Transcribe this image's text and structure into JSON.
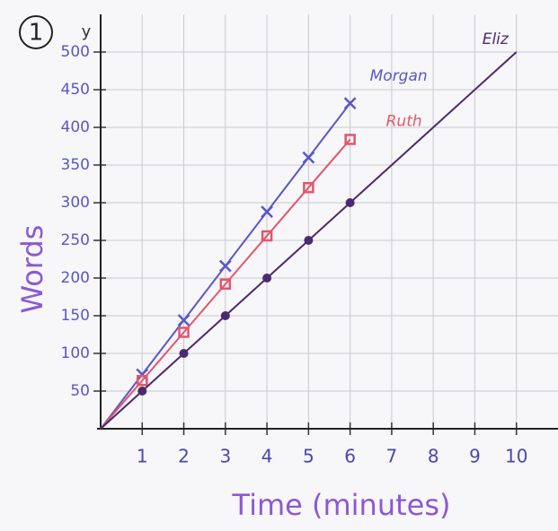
{
  "chart_data": {
    "type": "line",
    "badge": "1",
    "y_axis_letter": "y",
    "xlabel": "Time (minutes)",
    "ylabel": "Words",
    "xlim": [
      0,
      11
    ],
    "ylim": [
      0,
      550
    ],
    "xticks": [
      1,
      2,
      3,
      4,
      5,
      6,
      7,
      8,
      9,
      10
    ],
    "yticks": [
      50,
      100,
      150,
      200,
      250,
      300,
      350,
      400,
      450,
      500
    ],
    "grid": true,
    "series": [
      {
        "name": "Morgan",
        "color": "#5a56c8",
        "marker": "x",
        "x": [
          0,
          1,
          2,
          3,
          4,
          5,
          6
        ],
        "values": [
          0,
          72,
          144,
          216,
          288,
          360,
          432
        ]
      },
      {
        "name": "Ruth",
        "color": "#e2566c",
        "marker": "square",
        "x": [
          0,
          1,
          2,
          3,
          4,
          5,
          6
        ],
        "values": [
          0,
          64,
          128,
          192,
          256,
          320,
          384
        ]
      },
      {
        "name": "Eliz",
        "color": "#4b2a6e",
        "marker": "dot",
        "x": [
          0,
          1,
          2,
          3,
          4,
          5,
          6,
          10
        ],
        "values": [
          0,
          50,
          100,
          150,
          200,
          250,
          300,
          500
        ]
      }
    ]
  }
}
